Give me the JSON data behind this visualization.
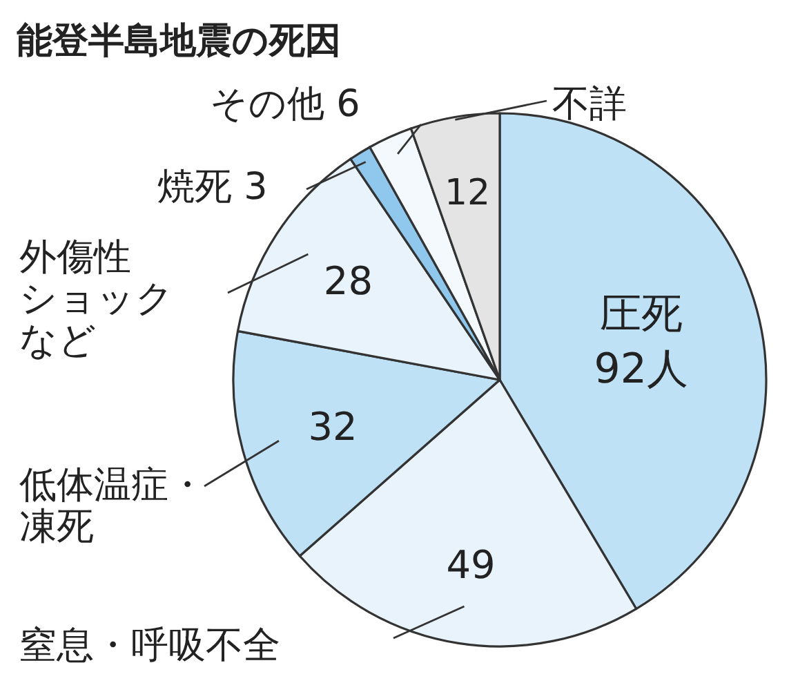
{
  "chart_data": {
    "type": "pie",
    "title": "能登半島地震の死因",
    "categories": [
      "圧死",
      "窒息・呼吸不全",
      "低体温症・凍死",
      "外傷性ショックなど",
      "焼死",
      "その他",
      "不詳"
    ],
    "values": [
      92,
      49,
      32,
      28,
      3,
      6,
      12
    ],
    "value_labels": [
      "92人",
      "49",
      "32",
      "28",
      "3",
      "6",
      "12"
    ],
    "colors": [
      "#bfe1f6",
      "#e8f3fb",
      "#bfe1f6",
      "#e8f3fb",
      "#8fc8ec",
      "#f4f9fd",
      "#e4e4e4"
    ]
  }
}
